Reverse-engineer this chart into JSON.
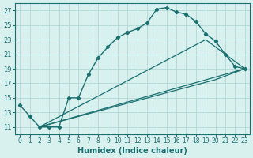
{
  "xlabel": "Humidex (Indice chaleur)",
  "background_color": "#d8f0ee",
  "grid_color": "#b0d8d4",
  "line_color": "#1a7070",
  "xlim": [
    -0.5,
    23.5
  ],
  "ylim": [
    10.0,
    28.0
  ],
  "xticks": [
    0,
    1,
    2,
    3,
    4,
    5,
    6,
    7,
    8,
    9,
    10,
    11,
    12,
    13,
    14,
    15,
    16,
    17,
    18,
    19,
    20,
    21,
    22,
    23
  ],
  "yticks": [
    11,
    13,
    15,
    17,
    19,
    21,
    23,
    25,
    27
  ],
  "curve1_x": [
    0,
    1,
    2,
    3,
    4,
    5,
    6,
    7,
    8,
    9,
    10,
    11,
    12,
    13,
    14,
    15,
    16,
    17,
    18,
    19,
    20,
    21,
    22,
    23
  ],
  "curve1_y": [
    14.0,
    12.5,
    11.0,
    11.0,
    11.0,
    15.0,
    15.0,
    18.2,
    20.5,
    22.0,
    23.3,
    24.0,
    24.5,
    25.3,
    27.2,
    27.4,
    26.8,
    26.5,
    25.5,
    23.8,
    22.8,
    21.0,
    19.3,
    19.0
  ],
  "line2_x": [
    2,
    23
  ],
  "line2_y": [
    11.0,
    19.0
  ],
  "line3_x": [
    2,
    19,
    23
  ],
  "line3_y": [
    11.0,
    23.0,
    19.0
  ],
  "line4_x": [
    2,
    20,
    23
  ],
  "line4_y": [
    11.0,
    17.5,
    19.0
  ]
}
